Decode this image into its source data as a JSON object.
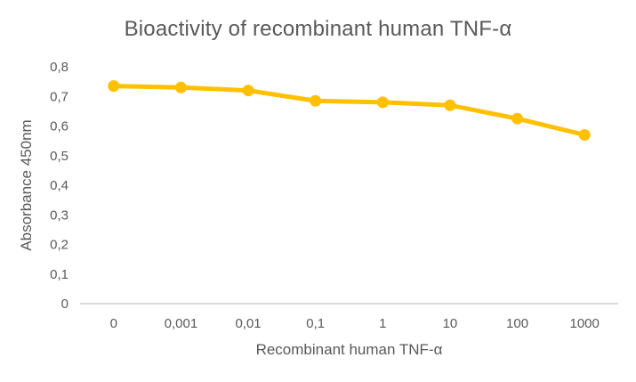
{
  "chart_data": {
    "type": "line",
    "title": "Bioactivity of recombinant human TNF-α",
    "xlabel": "Recombinant human TNF-α",
    "ylabel": "Absorbance 450nm",
    "categories": [
      "0",
      "0,001",
      "0,01",
      "0,1",
      "1",
      "10",
      "100",
      "1000"
    ],
    "values": [
      0.735,
      0.73,
      0.72,
      0.685,
      0.68,
      0.67,
      0.625,
      0.57
    ],
    "ylim": [
      0,
      0.8
    ],
    "y_tick_labels": [
      "0",
      "0,1",
      "0,2",
      "0,3",
      "0,4",
      "0,5",
      "0,6",
      "0,7",
      "0,8"
    ],
    "grid": false,
    "legend": "none",
    "colors": {
      "line": "#FFC000",
      "marker": "#FFC000",
      "axis_line": "#D9D9D9",
      "text": "#595959"
    }
  }
}
